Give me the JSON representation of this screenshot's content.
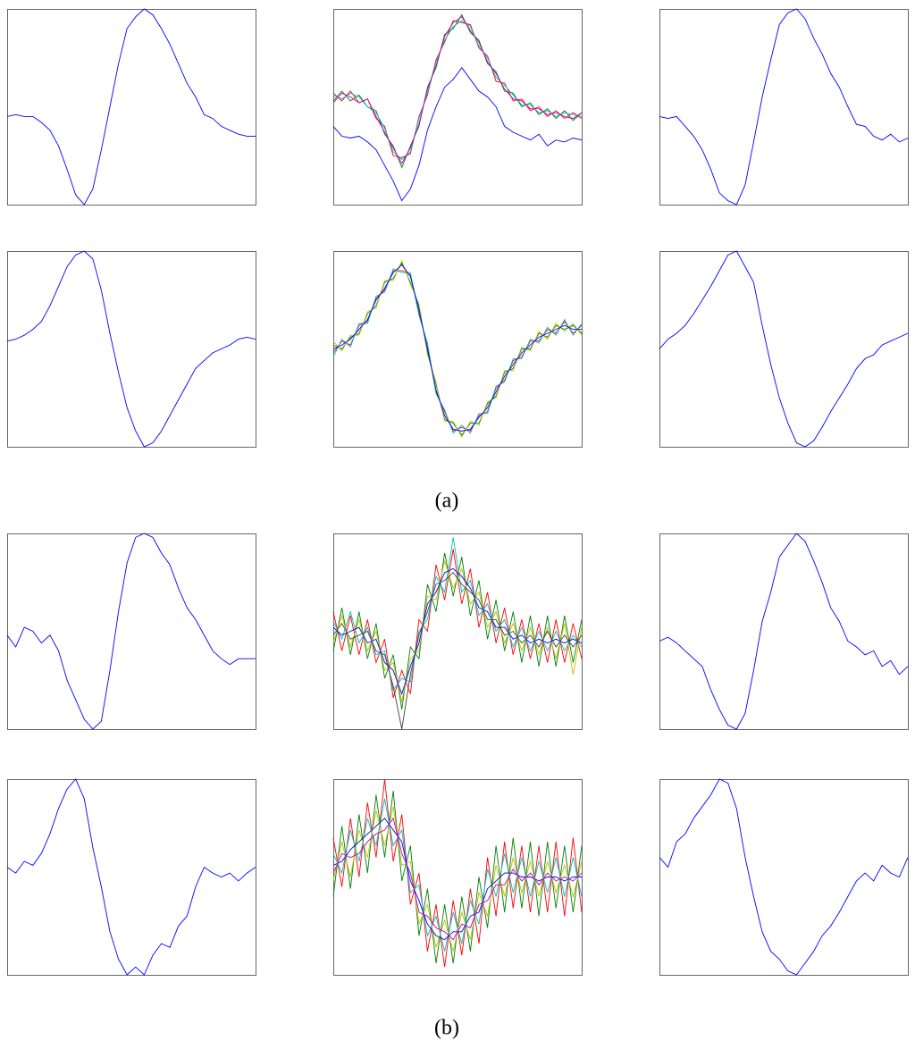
{
  "chart_data": [
    {
      "type": "line",
      "ylim": [
        0,
        1
      ],
      "series": [
        {
          "color": "#0000ff",
          "values": [
            0.45,
            0.46,
            0.45,
            0.45,
            0.42,
            0.38,
            0.3,
            0.18,
            0.05,
            0.0,
            0.08,
            0.28,
            0.5,
            0.72,
            0.9,
            0.96,
            1.0,
            0.97,
            0.9,
            0.82,
            0.72,
            0.62,
            0.55,
            0.46,
            0.44,
            0.4,
            0.38,
            0.36,
            0.35,
            0.35
          ]
        }
      ]
    },
    {
      "type": "line",
      "ylim": [
        0,
        1
      ],
      "series": [
        {
          "color": "#ff0000",
          "values": [
            0.57,
            0.53,
            0.58,
            0.52,
            0.54,
            0.44,
            0.4,
            0.25,
            0.24,
            0.26,
            0.45,
            0.56,
            0.74,
            0.83,
            0.94,
            0.93,
            0.92,
            0.8,
            0.76,
            0.63,
            0.62,
            0.53,
            0.54,
            0.48,
            0.5,
            0.45,
            0.48,
            0.44,
            0.47,
            0.44
          ]
        },
        {
          "color": "#008000",
          "values": [
            0.53,
            0.58,
            0.53,
            0.56,
            0.5,
            0.48,
            0.36,
            0.3,
            0.19,
            0.3,
            0.4,
            0.6,
            0.7,
            0.87,
            0.9,
            0.97,
            0.88,
            0.84,
            0.72,
            0.68,
            0.58,
            0.57,
            0.5,
            0.52,
            0.46,
            0.49,
            0.44,
            0.48,
            0.43,
            0.47
          ]
        },
        {
          "color": "#00bfbf",
          "values": [
            0.56,
            0.54,
            0.57,
            0.55,
            0.5,
            0.47,
            0.39,
            0.27,
            0.23,
            0.27,
            0.44,
            0.57,
            0.73,
            0.84,
            0.91,
            0.94,
            0.91,
            0.81,
            0.75,
            0.65,
            0.61,
            0.56,
            0.51,
            0.51,
            0.47,
            0.48,
            0.45,
            0.47,
            0.46,
            0.45
          ]
        },
        {
          "color": "#bf00bf",
          "values": [
            0.52,
            0.57,
            0.55,
            0.52,
            0.54,
            0.45,
            0.37,
            0.29,
            0.21,
            0.29,
            0.41,
            0.59,
            0.71,
            0.86,
            0.93,
            0.96,
            0.89,
            0.83,
            0.73,
            0.67,
            0.59,
            0.54,
            0.53,
            0.49,
            0.49,
            0.46,
            0.47,
            0.45,
            0.44,
            0.47
          ]
        },
        {
          "color": "#0000ff",
          "values": [
            0.4,
            0.35,
            0.34,
            0.35,
            0.32,
            0.28,
            0.2,
            0.12,
            0.02,
            0.08,
            0.2,
            0.38,
            0.5,
            0.6,
            0.64,
            0.7,
            0.64,
            0.58,
            0.55,
            0.5,
            0.4,
            0.37,
            0.35,
            0.33,
            0.36,
            0.3,
            0.33,
            0.32,
            0.34,
            0.33
          ]
        }
      ]
    },
    {
      "type": "line",
      "ylim": [
        0,
        1
      ],
      "series": [
        {
          "color": "#0000ff",
          "values": [
            0.45,
            0.44,
            0.45,
            0.4,
            0.35,
            0.28,
            0.18,
            0.06,
            0.02,
            0.0,
            0.1,
            0.32,
            0.55,
            0.74,
            0.92,
            0.98,
            1.0,
            0.95,
            0.85,
            0.77,
            0.67,
            0.6,
            0.5,
            0.41,
            0.4,
            0.35,
            0.33,
            0.36,
            0.32,
            0.34
          ]
        }
      ]
    },
    {
      "type": "line",
      "ylim": [
        0,
        1
      ],
      "series": [
        {
          "color": "#0000ff",
          "values": [
            0.54,
            0.55,
            0.57,
            0.6,
            0.64,
            0.72,
            0.82,
            0.92,
            0.98,
            1.0,
            0.96,
            0.8,
            0.58,
            0.38,
            0.2,
            0.08,
            0.0,
            0.02,
            0.08,
            0.16,
            0.24,
            0.32,
            0.4,
            0.44,
            0.48,
            0.5,
            0.52,
            0.55,
            0.56,
            0.55
          ]
        }
      ]
    },
    {
      "type": "line",
      "ylim": [
        0,
        1
      ],
      "series": [
        {
          "color": "#ff0000",
          "values": [
            0.48,
            0.54,
            0.52,
            0.62,
            0.64,
            0.76,
            0.8,
            0.9,
            0.9,
            0.88,
            0.68,
            0.52,
            0.28,
            0.18,
            0.08,
            0.1,
            0.08,
            0.16,
            0.18,
            0.3,
            0.34,
            0.44,
            0.46,
            0.54,
            0.54,
            0.6,
            0.58,
            0.64,
            0.58,
            0.62
          ]
        },
        {
          "color": "#008000",
          "values": [
            0.52,
            0.5,
            0.56,
            0.58,
            0.68,
            0.72,
            0.84,
            0.86,
            0.94,
            0.84,
            0.72,
            0.48,
            0.32,
            0.14,
            0.12,
            0.06,
            0.12,
            0.12,
            0.22,
            0.26,
            0.38,
            0.4,
            0.5,
            0.5,
            0.58,
            0.56,
            0.62,
            0.6,
            0.62,
            0.58
          ]
        },
        {
          "color": "#00bfbf",
          "values": [
            0.46,
            0.55,
            0.51,
            0.63,
            0.63,
            0.77,
            0.79,
            0.91,
            0.89,
            0.89,
            0.67,
            0.53,
            0.27,
            0.19,
            0.07,
            0.11,
            0.07,
            0.17,
            0.17,
            0.31,
            0.33,
            0.45,
            0.45,
            0.55,
            0.53,
            0.61,
            0.57,
            0.65,
            0.57,
            0.63
          ]
        },
        {
          "color": "#bfbf00",
          "values": [
            0.54,
            0.49,
            0.57,
            0.57,
            0.69,
            0.71,
            0.85,
            0.85,
            0.95,
            0.83,
            0.73,
            0.47,
            0.33,
            0.13,
            0.13,
            0.05,
            0.13,
            0.11,
            0.23,
            0.25,
            0.39,
            0.39,
            0.51,
            0.49,
            0.59,
            0.55,
            0.63,
            0.59,
            0.63,
            0.57
          ]
        },
        {
          "color": "#0000ff",
          "values": [
            0.5,
            0.52,
            0.55,
            0.6,
            0.65,
            0.75,
            0.81,
            0.89,
            0.93,
            0.87,
            0.7,
            0.5,
            0.29,
            0.16,
            0.09,
            0.08,
            0.09,
            0.15,
            0.2,
            0.28,
            0.36,
            0.42,
            0.48,
            0.52,
            0.56,
            0.58,
            0.6,
            0.62,
            0.6,
            0.6
          ]
        }
      ]
    },
    {
      "type": "line",
      "ylim": [
        0,
        1
      ],
      "series": [
        {
          "color": "#0000ff",
          "values": [
            0.5,
            0.55,
            0.58,
            0.62,
            0.68,
            0.75,
            0.82,
            0.9,
            0.98,
            1.0,
            0.92,
            0.84,
            0.62,
            0.42,
            0.25,
            0.12,
            0.02,
            0.0,
            0.03,
            0.1,
            0.18,
            0.25,
            0.32,
            0.4,
            0.45,
            0.47,
            0.52,
            0.54,
            0.56,
            0.58
          ]
        }
      ]
    },
    {
      "type": "line",
      "ylim": [
        0,
        1
      ],
      "series": [
        {
          "color": "#0000ff",
          "values": [
            0.48,
            0.42,
            0.52,
            0.5,
            0.44,
            0.48,
            0.4,
            0.25,
            0.15,
            0.05,
            0.0,
            0.04,
            0.3,
            0.6,
            0.85,
            0.98,
            1.0,
            0.98,
            0.9,
            0.84,
            0.72,
            0.62,
            0.56,
            0.48,
            0.4,
            0.36,
            0.33,
            0.36,
            0.36,
            0.36
          ]
        }
      ]
    },
    {
      "type": "line",
      "ylim": [
        0,
        1
      ],
      "series": [
        {
          "color": "#ff0000",
          "values": [
            0.6,
            0.4,
            0.58,
            0.38,
            0.56,
            0.34,
            0.46,
            0.16,
            0.3,
            0.18,
            0.56,
            0.5,
            0.84,
            0.66,
            0.92,
            0.64,
            0.82,
            0.52,
            0.7,
            0.44,
            0.62,
            0.38,
            0.56,
            0.36,
            0.54,
            0.34,
            0.56,
            0.34,
            0.54,
            0.36
          ]
        },
        {
          "color": "#008000",
          "values": [
            0.4,
            0.62,
            0.38,
            0.6,
            0.36,
            0.54,
            0.26,
            0.38,
            0.1,
            0.42,
            0.36,
            0.74,
            0.6,
            0.9,
            0.68,
            0.88,
            0.58,
            0.76,
            0.46,
            0.66,
            0.4,
            0.6,
            0.34,
            0.58,
            0.32,
            0.58,
            0.32,
            0.58,
            0.34,
            0.56
          ]
        },
        {
          "color": "#00bfbf",
          "values": [
            0.55,
            0.46,
            0.6,
            0.44,
            0.52,
            0.38,
            0.4,
            0.2,
            0.26,
            0.24,
            0.5,
            0.56,
            0.78,
            0.7,
            0.98,
            0.7,
            0.76,
            0.58,
            0.64,
            0.5,
            0.56,
            0.42,
            0.52,
            0.4,
            0.5,
            0.4,
            0.5,
            0.4,
            0.48,
            0.42
          ]
        },
        {
          "color": "#bfbf00",
          "values": [
            0.44,
            0.58,
            0.42,
            0.56,
            0.4,
            0.5,
            0.3,
            0.34,
            0.14,
            0.36,
            0.4,
            0.68,
            0.66,
            0.86,
            0.72,
            0.82,
            0.64,
            0.7,
            0.52,
            0.6,
            0.44,
            0.54,
            0.4,
            0.52,
            0.38,
            0.52,
            0.36,
            0.54,
            0.28,
            0.52
          ]
        },
        {
          "color": "#0000ff",
          "values": [
            0.52,
            0.48,
            0.5,
            0.52,
            0.44,
            0.46,
            0.34,
            0.3,
            0.18,
            0.32,
            0.44,
            0.64,
            0.7,
            0.8,
            0.82,
            0.78,
            0.72,
            0.62,
            0.6,
            0.52,
            0.52,
            0.46,
            0.48,
            0.44,
            0.46,
            0.44,
            0.46,
            0.44,
            0.46,
            0.44
          ]
        },
        {
          "color": "#404040",
          "values": [
            0.48,
            0.54,
            0.46,
            0.48,
            0.5,
            0.4,
            0.38,
            0.22,
            0.0,
            0.28,
            0.48,
            0.6,
            0.74,
            0.76,
            0.8,
            0.74,
            0.7,
            0.66,
            0.56,
            0.56,
            0.48,
            0.5,
            0.44,
            0.48,
            0.42,
            0.5,
            0.42,
            0.48,
            0.42,
            0.48
          ]
        }
      ]
    },
    {
      "type": "line",
      "ylim": [
        0,
        1
      ],
      "series": [
        {
          "color": "#0000ff",
          "values": [
            0.45,
            0.47,
            0.44,
            0.4,
            0.36,
            0.32,
            0.2,
            0.1,
            0.02,
            0.0,
            0.08,
            0.3,
            0.55,
            0.7,
            0.88,
            0.94,
            1.0,
            0.96,
            0.86,
            0.75,
            0.62,
            0.55,
            0.45,
            0.42,
            0.38,
            0.4,
            0.32,
            0.35,
            0.28,
            0.32
          ]
        }
      ]
    },
    {
      "type": "line",
      "ylim": [
        0,
        1
      ],
      "series": [
        {
          "color": "#0000ff",
          "values": [
            0.55,
            0.52,
            0.58,
            0.56,
            0.62,
            0.72,
            0.85,
            0.95,
            1.0,
            0.9,
            0.65,
            0.45,
            0.22,
            0.08,
            0.0,
            0.04,
            0.0,
            0.1,
            0.16,
            0.14,
            0.25,
            0.3,
            0.45,
            0.55,
            0.52,
            0.5,
            0.52,
            0.48,
            0.52,
            0.55
          ]
        }
      ]
    },
    {
      "type": "line",
      "ylim": [
        0,
        1
      ],
      "series": [
        {
          "color": "#ff0000",
          "values": [
            0.7,
            0.45,
            0.8,
            0.5,
            0.88,
            0.6,
            1.0,
            0.58,
            0.82,
            0.36,
            0.52,
            0.12,
            0.36,
            0.04,
            0.38,
            0.1,
            0.44,
            0.16,
            0.6,
            0.3,
            0.68,
            0.34,
            0.66,
            0.32,
            0.66,
            0.32,
            0.68,
            0.3,
            0.7,
            0.32
          ]
        },
        {
          "color": "#008000",
          "values": [
            0.4,
            0.76,
            0.44,
            0.82,
            0.52,
            0.92,
            0.6,
            0.94,
            0.48,
            0.66,
            0.2,
            0.44,
            0.06,
            0.36,
            0.06,
            0.4,
            0.12,
            0.5,
            0.24,
            0.66,
            0.32,
            0.7,
            0.34,
            0.68,
            0.3,
            0.68,
            0.34,
            0.66,
            0.32,
            0.66
          ]
        },
        {
          "color": "#00bfbf",
          "values": [
            0.62,
            0.52,
            0.74,
            0.58,
            0.8,
            0.66,
            0.9,
            0.66,
            0.74,
            0.42,
            0.46,
            0.2,
            0.3,
            0.12,
            0.32,
            0.16,
            0.38,
            0.26,
            0.54,
            0.4,
            0.62,
            0.42,
            0.6,
            0.4,
            0.58,
            0.42,
            0.6,
            0.4,
            0.6,
            0.4
          ]
        },
        {
          "color": "#bfbf00",
          "values": [
            0.48,
            0.68,
            0.5,
            0.74,
            0.6,
            0.84,
            0.66,
            0.86,
            0.56,
            0.58,
            0.26,
            0.36,
            0.14,
            0.28,
            0.12,
            0.32,
            0.18,
            0.42,
            0.3,
            0.56,
            0.4,
            0.6,
            0.42,
            0.58,
            0.4,
            0.58,
            0.42,
            0.56,
            0.4,
            0.58
          ]
        },
        {
          "color": "#0000ff",
          "values": [
            0.56,
            0.58,
            0.64,
            0.68,
            0.72,
            0.76,
            0.8,
            0.74,
            0.68,
            0.48,
            0.38,
            0.26,
            0.2,
            0.18,
            0.22,
            0.22,
            0.3,
            0.32,
            0.44,
            0.48,
            0.52,
            0.52,
            0.5,
            0.5,
            0.48,
            0.5,
            0.5,
            0.48,
            0.5,
            0.5
          ]
        },
        {
          "color": "#bf00bf",
          "values": [
            0.52,
            0.62,
            0.6,
            0.62,
            0.68,
            0.72,
            0.74,
            0.8,
            0.62,
            0.52,
            0.32,
            0.3,
            0.24,
            0.22,
            0.18,
            0.26,
            0.24,
            0.36,
            0.38,
            0.46,
            0.46,
            0.54,
            0.48,
            0.52,
            0.46,
            0.52,
            0.48,
            0.5,
            0.48,
            0.52
          ]
        }
      ]
    },
    {
      "type": "line",
      "ylim": [
        0,
        1
      ],
      "series": [
        {
          "color": "#0000ff",
          "values": [
            0.6,
            0.55,
            0.68,
            0.72,
            0.8,
            0.86,
            0.92,
            1.0,
            0.98,
            0.85,
            0.6,
            0.4,
            0.22,
            0.12,
            0.08,
            0.02,
            0.0,
            0.06,
            0.12,
            0.2,
            0.25,
            0.32,
            0.4,
            0.48,
            0.52,
            0.48,
            0.56,
            0.52,
            0.5,
            0.6
          ]
        }
      ]
    }
  ],
  "captions": [
    "(a)",
    "(b)"
  ]
}
